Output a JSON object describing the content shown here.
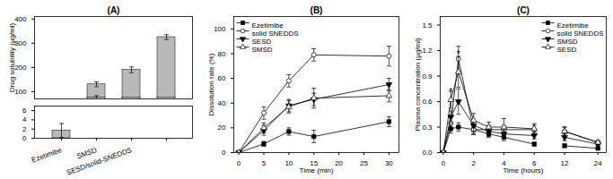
{
  "chart_data": [
    {
      "type": "bar",
      "title": "(A)",
      "ylabel": "Drug solubility (μg/ml)",
      "categories": [
        "Ezetimibe",
        "SMSD",
        "SESD/solid-SNEDDS",
        null
      ],
      "series": [
        {
          "color": "#b8b8b8",
          "values": [
            null,
            130,
            190,
            325
          ],
          "errors": [
            null,
            10,
            12,
            10
          ]
        },
        {
          "color": "#b8b8b8",
          "values": [
            null,
            75,
            75,
            75
          ],
          "errors": [
            null,
            8,
            0,
            0
          ]
        }
      ],
      "stacked": false,
      "ylim": [
        70,
        410
      ],
      "yticks": [
        100,
        200,
        300,
        400
      ],
      "tick_labels": "y"
    },
    {
      "type": "bar",
      "categories": [
        "Ezetimibe",
        "SMSD",
        "SESD/solid-SNEDDS",
        null
      ],
      "series": [
        {
          "color": "#b8b8b8",
          "values": [
            1.7,
            null,
            null,
            null
          ],
          "errors": [
            1.5,
            null,
            null,
            null
          ]
        }
      ],
      "ylim": [
        0,
        7
      ],
      "yticks": [
        0,
        2,
        4,
        6
      ]
    },
    {
      "type": "line",
      "title": "(B)",
      "xlabel": "Time (min)",
      "ylabel": "Dissolution rate (%)",
      "x": [
        0,
        5,
        10,
        15,
        30
      ],
      "series": [
        {
          "name": "Ezetimibe",
          "color": "black",
          "marker": "square",
          "values": [
            0,
            7,
            17,
            13,
            25
          ],
          "errors": [
            0,
            2,
            3,
            5,
            4
          ]
        },
        {
          "name": "solid SNEDDS",
          "color": "black",
          "marker": "circle-open",
          "values": [
            0,
            32,
            58,
            79,
            78
          ],
          "errors": [
            0,
            5,
            5,
            5,
            8
          ]
        },
        {
          "name": "SESD",
          "color": "black",
          "marker": "triangle-down",
          "values": [
            0,
            18,
            38,
            43,
            55
          ],
          "errors": [
            0,
            4,
            5,
            5,
            5
          ]
        },
        {
          "name": "SMSD",
          "color": "black",
          "marker": "triangle-up-open",
          "values": [
            0,
            20,
            37,
            44,
            46
          ],
          "errors": [
            0,
            4,
            5,
            8,
            5
          ]
        }
      ],
      "xlim": [
        -1,
        32
      ],
      "xticks": [
        0,
        5,
        10,
        15,
        20,
        25,
        30
      ],
      "ylim": [
        0,
        110
      ],
      "yticks": [
        0,
        20,
        40,
        60,
        80,
        100
      ],
      "legend": "upper left"
    },
    {
      "type": "line",
      "title": "(C)",
      "xlabel": "Time (hours)",
      "ylabel": "Plasma concentration (μg/ml)",
      "x": [
        0,
        0.5,
        1,
        2,
        3,
        4,
        6,
        12,
        24
      ],
      "series": [
        {
          "name": "Ezetimibe",
          "color": "black",
          "marker": "square",
          "values": [
            0,
            0.28,
            0.3,
            0.27,
            0.22,
            0.18,
            0.1,
            0.08,
            0.05
          ],
          "errors": [
            0,
            0.05,
            0.05,
            0.05,
            0.04,
            0.04,
            0.02,
            0.02,
            0.01
          ]
        },
        {
          "name": "solid SNEDDS",
          "color": "black",
          "marker": "circle-open",
          "values": [
            0,
            0.35,
            1.1,
            0.27,
            0.27,
            0.27,
            0.27,
            0.25,
            0.12
          ],
          "errors": [
            0,
            0.08,
            0.15,
            0.06,
            0.05,
            0.05,
            0.05,
            0.05,
            0.02
          ]
        },
        {
          "name": "SMSD",
          "color": "black",
          "marker": "triangle-down",
          "values": [
            0,
            0.42,
            0.6,
            0.32,
            0.25,
            0.22,
            0.2,
            0.18,
            0.1
          ],
          "errors": [
            0,
            0.07,
            0.15,
            0.07,
            0.06,
            0.05,
            0.04,
            0.04,
            0.02
          ]
        },
        {
          "name": "SESD",
          "color": "black",
          "marker": "triangle-up-open",
          "values": [
            0,
            0.62,
            0.95,
            0.38,
            0.3,
            0.3,
            0.28,
            0.25,
            0.12
          ],
          "errors": [
            0,
            0.1,
            0.18,
            0.08,
            0.06,
            0.1,
            0.06,
            0.05,
            0.02
          ]
        }
      ],
      "xlim": [
        -0.2,
        27
      ],
      "xticks": [
        0,
        2,
        4,
        6,
        12,
        24
      ],
      "ylim": [
        0,
        1.6
      ],
      "yticks": [
        {
          "value": 0,
          "label": "0.0"
        },
        0.3,
        0.6,
        0.9,
        1.2,
        1.5
      ],
      "legend": "upper right",
      "annotations": [
        {
          "text": "*",
          "x": 1,
          "y": 1.12
        },
        {
          "text": "*",
          "x": 0.5,
          "y": 0.68
        }
      ]
    }
  ]
}
